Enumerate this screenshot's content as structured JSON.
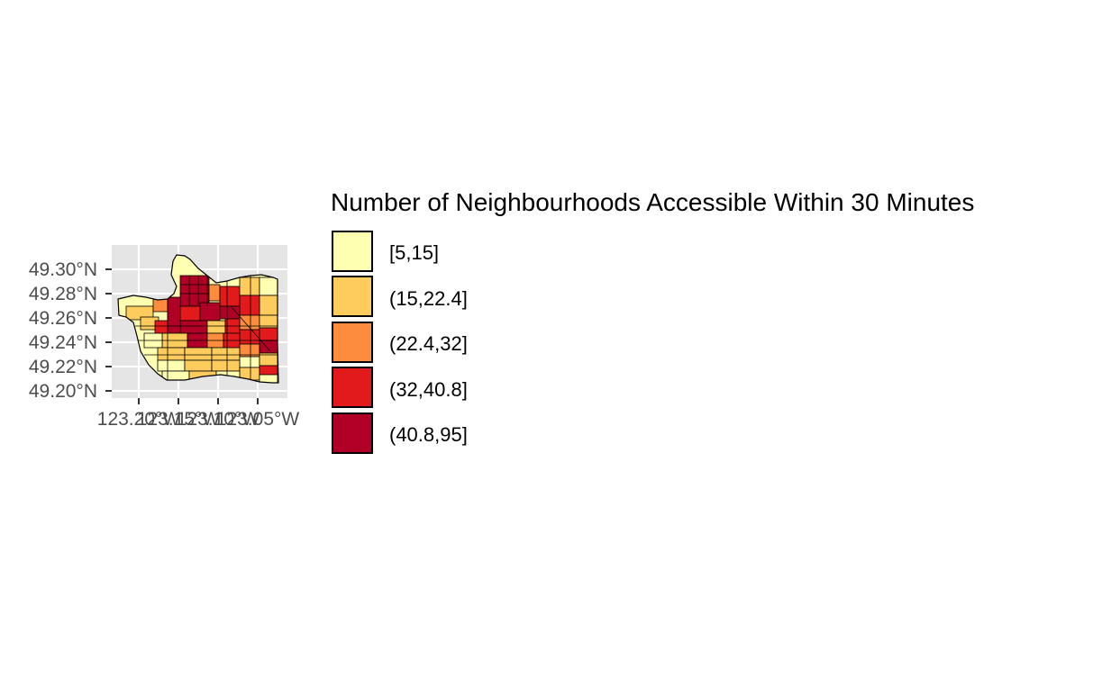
{
  "colors": {
    "panel_bg": "#e5e5e5",
    "grid": "#ffffff",
    "tick_text": "#4d4d4d",
    "border": "#000000"
  },
  "map": {
    "y_ticks": [
      "49.30°N",
      "49.28°N",
      "49.26°N",
      "49.24°N",
      "49.22°N",
      "49.20°N"
    ],
    "x_ticks": [
      "123.20°W",
      "123.15°W",
      "123.10°W",
      "123.05°W"
    ]
  },
  "legend": {
    "title": "Number of Neighbourhoods Accessible Within 30 Minutes",
    "items": [
      {
        "label": "[5,15]",
        "color": "#ffffb2"
      },
      {
        "label": "(15,22.4]",
        "color": "#fecc5c"
      },
      {
        "label": "(22.4,32]",
        "color": "#fd8d3c"
      },
      {
        "label": "(32,40.8]",
        "color": "#e31a1c"
      },
      {
        "label": "(40.8,95]",
        "color": "#b10026"
      }
    ]
  }
}
